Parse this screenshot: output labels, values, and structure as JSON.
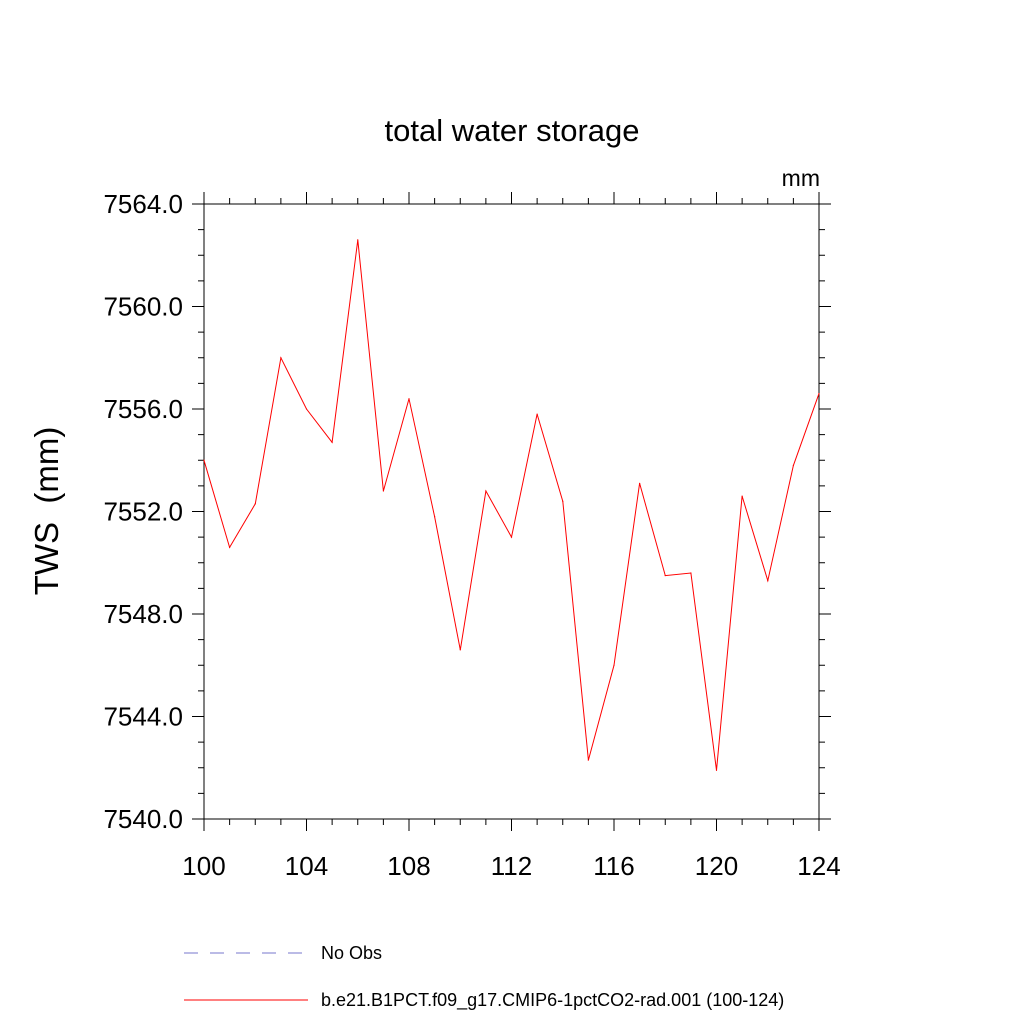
{
  "chart_data": {
    "type": "line",
    "title": "total water storage",
    "units_label": "mm",
    "ylabel": "TWS  (mm)",
    "xlabel": "",
    "xlim": [
      100,
      124
    ],
    "ylim": [
      7540.0,
      7564.0
    ],
    "x_ticks": [
      100,
      104,
      108,
      112,
      116,
      120,
      124
    ],
    "x_tick_labels": [
      "100",
      "104",
      "108",
      "112",
      "116",
      "120",
      "124"
    ],
    "y_ticks": [
      7540.0,
      7544.0,
      7548.0,
      7552.0,
      7556.0,
      7560.0,
      7564.0
    ],
    "y_tick_labels": [
      "7540.0",
      "7544.0",
      "7548.0",
      "7552.0",
      "7556.0",
      "7560.0",
      "7564.0"
    ],
    "grid": false,
    "legend_position": "bottom",
    "series": [
      {
        "name": "b.e21.B1PCT.f09_g17.CMIP6-1pctCO2-rad.001 (100-124)",
        "color": "#ff0000",
        "style": "solid",
        "x": [
          100,
          101,
          102,
          103,
          104,
          105,
          106,
          107,
          108,
          109,
          110,
          111,
          112,
          113,
          114,
          115,
          116,
          117,
          118,
          119,
          120,
          121,
          122,
          123,
          124
        ],
        "y": [
          7554.0,
          7550.6,
          7552.3,
          7558.0,
          7556.0,
          7554.7,
          7562.6,
          7552.8,
          7556.4,
          7551.8,
          7546.6,
          7552.8,
          7551.0,
          7555.8,
          7552.4,
          7542.3,
          7546.0,
          7553.1,
          7549.5,
          7549.6,
          7541.9,
          7552.6,
          7549.3,
          7553.8,
          7556.6
        ]
      }
    ],
    "legend": [
      {
        "label": "No Obs",
        "color": "#7777cc",
        "style": "dashed"
      },
      {
        "label": "b.e21.B1PCT.f09_g17.CMIP6-1pctCO2-rad.001 (100-124)",
        "color": "#ff0000",
        "style": "solid"
      }
    ]
  }
}
